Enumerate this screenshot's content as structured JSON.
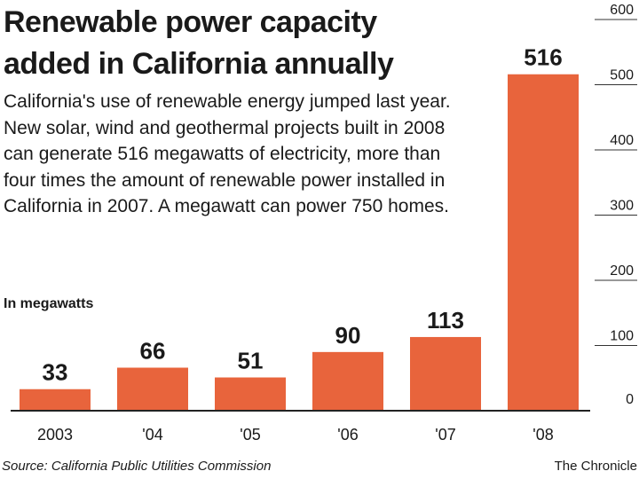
{
  "header": {
    "title_line1": "Renewable power capacity",
    "title_line2": "added in California annually",
    "subtitle": "California's use of renewable energy jumped last year. New solar, wind and geothermal projects built in 2008 can generate 516 megawatts of electricity, more than four times the amount of renewable power installed in California in 2007. A megawatt can power 750 homes.",
    "unit_label": "In megawatts"
  },
  "footer": {
    "source": "Source: California Public Utilities Commission",
    "credit": "The Chronicle"
  },
  "chart_data": {
    "type": "bar",
    "title": "Renewable power capacity added in California annually",
    "ylabel": "In megawatts",
    "xlabel": "",
    "categories": [
      "2003",
      "'04",
      "'05",
      "'06",
      "'07",
      "'08"
    ],
    "values": [
      33,
      66,
      51,
      90,
      113,
      516
    ],
    "value_labels": [
      "33",
      "66",
      "51",
      "90",
      "113",
      "516"
    ],
    "ylim": [
      0,
      600
    ],
    "yticks": [
      0,
      100,
      200,
      300,
      400,
      500,
      600
    ],
    "grid": false,
    "y_axis_side": "right",
    "bar_color": "#e8643c"
  }
}
